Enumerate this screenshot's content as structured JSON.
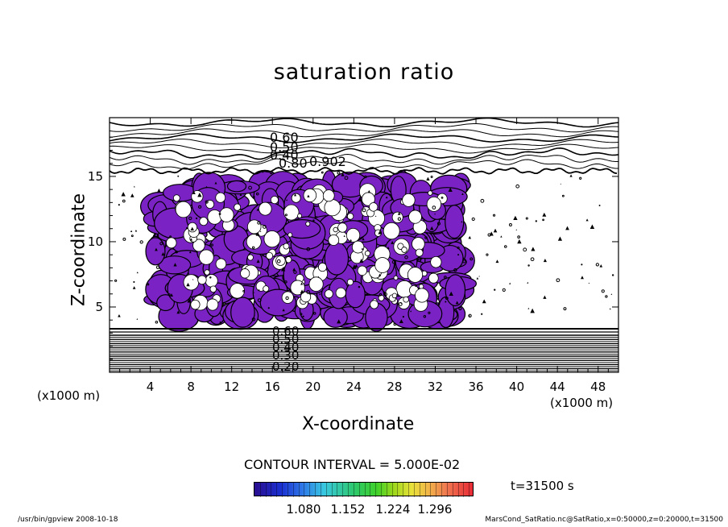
{
  "title": "saturation ratio",
  "chart_data": {
    "type": "contour",
    "title": "saturation ratio",
    "xlabel": "X-coordinate",
    "ylabel": "Z-coordinate",
    "x_unit": "(x1000 m)",
    "y_unit": "(x1000 m)",
    "xlim": [
      0,
      50
    ],
    "ylim": [
      0,
      19.5
    ],
    "x_ticks": [
      4,
      8,
      12,
      16,
      20,
      24,
      28,
      32,
      36,
      40,
      44,
      48
    ],
    "y_ticks": [
      5,
      10,
      15
    ],
    "contour_interval": "CONTOUR INTERVAL = 5.000E-02",
    "fill_color": "#7b22c4",
    "top_contour_labels": [
      "0.60",
      "0.50",
      "0.40",
      "0.80",
      "0.902"
    ],
    "bottom_contour_labels": [
      "0.60",
      "0.50",
      "0.40",
      "0.30",
      "0.20"
    ],
    "colorbar_labels": [
      "1.080",
      "1.152",
      "1.224",
      "1.296"
    ],
    "time": "t=31500 s"
  },
  "footer": {
    "left": "/usr/bin/gpview   2008-10-18",
    "right": "MarsCond_SatRatio.nc@SatRatio,x=0:50000,z=0:20000,t=31500"
  }
}
